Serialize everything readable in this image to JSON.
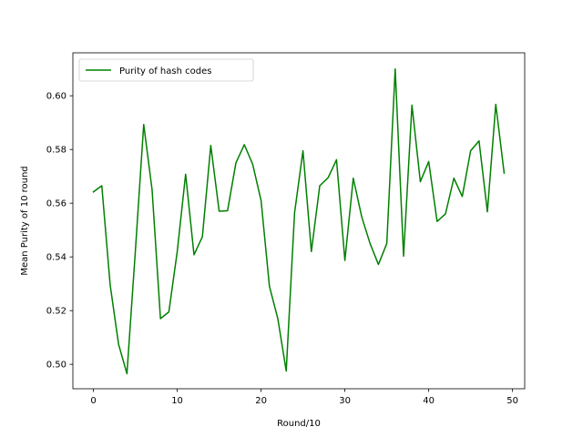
{
  "chart_data": {
    "type": "line",
    "title": "",
    "xlabel": "Round/10",
    "ylabel": "Mean Purity of 10 round",
    "xlim": [
      -2.45,
      51.45
    ],
    "ylim": [
      0.4909,
      0.616
    ],
    "xticks": [
      0,
      10,
      20,
      30,
      40,
      50
    ],
    "xtick_labels": [
      "0",
      "10",
      "20",
      "30",
      "40",
      "50"
    ],
    "yticks": [
      0.5,
      0.52,
      0.54,
      0.56,
      0.58,
      0.6
    ],
    "ytick_labels": [
      "0.50",
      "0.52",
      "0.54",
      "0.56",
      "0.58",
      "0.60"
    ],
    "grid": false,
    "legend_position": "top-left",
    "series": [
      {
        "name": "Purity of hash codes",
        "color": "#008000",
        "x": [
          0,
          1,
          2,
          3,
          4,
          5,
          6,
          7,
          8,
          9,
          10,
          11,
          12,
          13,
          14,
          15,
          16,
          17,
          18,
          19,
          20,
          21,
          22,
          23,
          24,
          25,
          26,
          27,
          28,
          29,
          30,
          31,
          32,
          33,
          34,
          35,
          36,
          37,
          38,
          39,
          40,
          41,
          42,
          43,
          44,
          45,
          46,
          47,
          48,
          49
        ],
        "values": [
          0.5642,
          0.5665,
          0.5295,
          0.5075,
          0.4965,
          0.542,
          0.5893,
          0.565,
          0.517,
          0.5195,
          0.542,
          0.5708,
          0.5408,
          0.5475,
          0.5815,
          0.557,
          0.5572,
          0.575,
          0.5818,
          0.5745,
          0.561,
          0.529,
          0.517,
          0.4975,
          0.5565,
          0.5795,
          0.542,
          0.5665,
          0.5695,
          0.5762,
          0.5387,
          0.5693,
          0.555,
          0.545,
          0.5372,
          0.545,
          0.61,
          0.5403,
          0.5965,
          0.568,
          0.5755,
          0.5532,
          0.556,
          0.5693,
          0.5625,
          0.5795,
          0.5832,
          0.5568,
          0.5968,
          0.5712
        ]
      }
    ]
  }
}
